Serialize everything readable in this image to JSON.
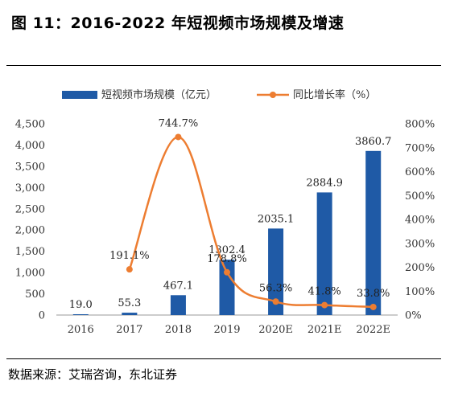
{
  "figure_title": "图  11：2016-2022 年短视频市场规模及增速",
  "source": "数据来源：艾瑞咨询，东北证券",
  "colors": {
    "bar": "#1f5aa6",
    "line": "#ed7d31"
  },
  "chart_data": {
    "type": "bar",
    "categories": [
      "2016",
      "2017",
      "2018",
      "2019",
      "2020E",
      "2021E",
      "2022E"
    ],
    "series": [
      {
        "name": "短视频市场规模（亿元）",
        "type": "bar",
        "axis": "left",
        "values": [
          19.0,
          55.3,
          467.1,
          1302.4,
          2035.1,
          2884.9,
          3860.7
        ],
        "labels": [
          "19.0",
          "55.3",
          "467.1",
          "1302.4",
          "2035.1",
          "2884.9",
          "3860.7"
        ]
      },
      {
        "name": "同比增长率（%）",
        "type": "line",
        "axis": "right",
        "values": [
          null,
          191.1,
          744.7,
          178.8,
          56.3,
          41.8,
          33.8
        ],
        "labels": [
          "",
          "191.1%",
          "744.7%",
          "178.8%",
          "56.3%",
          "41.8%",
          "33.8%"
        ]
      }
    ],
    "y_left": {
      "range": [
        0,
        4500
      ],
      "ticks": [
        "0",
        "500",
        "1,000",
        "1,500",
        "2,000",
        "2,500",
        "3,000",
        "3,500",
        "4,000",
        "4,500"
      ]
    },
    "y_right": {
      "range": [
        0,
        800
      ],
      "ticks": [
        "0%",
        "100%",
        "200%",
        "300%",
        "400%",
        "500%",
        "600%",
        "700%",
        "800%"
      ]
    },
    "grid": false,
    "legend_position": "top"
  }
}
